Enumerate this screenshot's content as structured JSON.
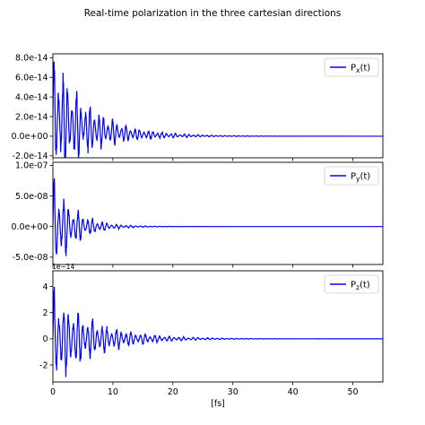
{
  "figure": {
    "title": "Real-time polarization in the three cartesian directions"
  },
  "chart_data": [
    {
      "type": "line",
      "series": [
        {
          "name": "Px(t)",
          "label_main": "P",
          "label_sub": "x",
          "label_tail": "(t)",
          "color": "#0000ff",
          "envelope": {
            "amplitude": 8e-14,
            "offset": 2e-14,
            "decay_fs": 6.0,
            "osc_period_fs": 0.75
          }
        }
      ],
      "xlim": [
        0,
        55
      ],
      "ylim": [
        -2.2e-14,
        8.4e-14
      ],
      "yticks": [
        -2e-14,
        0.0,
        2e-14,
        4e-14,
        6e-14,
        8e-14
      ],
      "ytick_labels": [
        "-2.0e-14",
        "0.0e+00",
        "2.0e-14",
        "4.0e-14",
        "6.0e-14",
        "8.0e-14"
      ],
      "legend_position": "upper right",
      "sharex": true
    },
    {
      "type": "line",
      "series": [
        {
          "name": "Py(t)",
          "label_main": "P",
          "label_sub": "y",
          "label_tail": "(t)",
          "color": "#0000ff",
          "envelope": {
            "amplitude": 1e-07,
            "offset": 0.0,
            "decay_fs": 3.5,
            "osc_period_fs": 0.8
          }
        }
      ],
      "xlim": [
        0,
        55
      ],
      "ylim": [
        -6.2e-08,
        1.05e-07
      ],
      "yticks": [
        -5e-08,
        0.0,
        5e-08,
        1e-07
      ],
      "ytick_labels": [
        "-5.0e-08",
        "0.0e+00",
        "5.0e-08",
        "1.0e-07"
      ],
      "legend_position": "upper right",
      "sharex": true
    },
    {
      "type": "line",
      "series": [
        {
          "name": "Pz(t)",
          "label_main": "P",
          "label_sub": "z",
          "label_tail": "(t)",
          "color": "#0000ff",
          "envelope": {
            "amplitude": 4.8,
            "offset": 0.0,
            "decay_fs": 6.5,
            "osc_period_fs": 0.8
          }
        }
      ],
      "xlim": [
        0,
        55
      ],
      "ylim": [
        -3.3,
        5.2
      ],
      "yticks": [
        -2,
        0,
        2,
        4
      ],
      "ytick_labels": [
        "-2",
        "0",
        "2",
        "4"
      ],
      "offset_text": "1e−14",
      "xticks": [
        0,
        10,
        20,
        30,
        40,
        50
      ],
      "xtick_labels": [
        "0",
        "10",
        "20",
        "30",
        "40",
        "50"
      ],
      "xlabel": "[fs]",
      "legend_position": "upper right"
    }
  ]
}
